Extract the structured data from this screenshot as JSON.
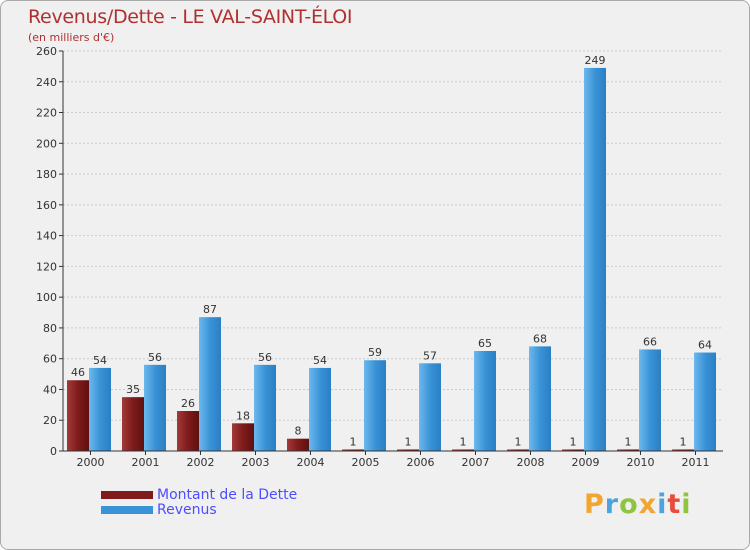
{
  "title": "Revenus/Dette - LE VAL-SAINT-ÉLOI",
  "subtitle": "(en milliers d'€)",
  "logo": {
    "text": "Proxiti",
    "colors": [
      "#f2a531",
      "#4ca3dd",
      "#8fc440",
      "#f2a531",
      "#4ca3dd",
      "#e74c3c",
      "#8fc440"
    ]
  },
  "colors": {
    "dette": "#7f1b1b",
    "dette_light": "#a33a3a",
    "revenus": "#3a93d6",
    "revenus_light": "#66b3ea",
    "grid": "#cccccc",
    "axis": "#333333",
    "legend_text": "#4d4dff"
  },
  "chart_data": {
    "type": "bar",
    "title": "Revenus/Dette - LE VAL-SAINT-ÉLOI",
    "ylabel": "(en milliers d'€)",
    "categories": [
      "2000",
      "2001",
      "2002",
      "2003",
      "2004",
      "2005",
      "2006",
      "2007",
      "2008",
      "2009",
      "2010",
      "2011"
    ],
    "series": [
      {
        "name": "Montant de la Dette",
        "values": [
          46,
          35,
          26,
          18,
          8,
          1,
          1,
          1,
          1,
          1,
          1,
          1
        ]
      },
      {
        "name": "Revenus",
        "values": [
          54,
          56,
          87,
          56,
          54,
          59,
          57,
          65,
          68,
          249,
          66,
          64
        ]
      }
    ],
    "ylim": [
      0,
      260
    ],
    "yticks": [
      0,
      20,
      40,
      60,
      80,
      100,
      120,
      140,
      160,
      180,
      200,
      220,
      240,
      260
    ],
    "grid": true,
    "legend": "bottom-left"
  }
}
